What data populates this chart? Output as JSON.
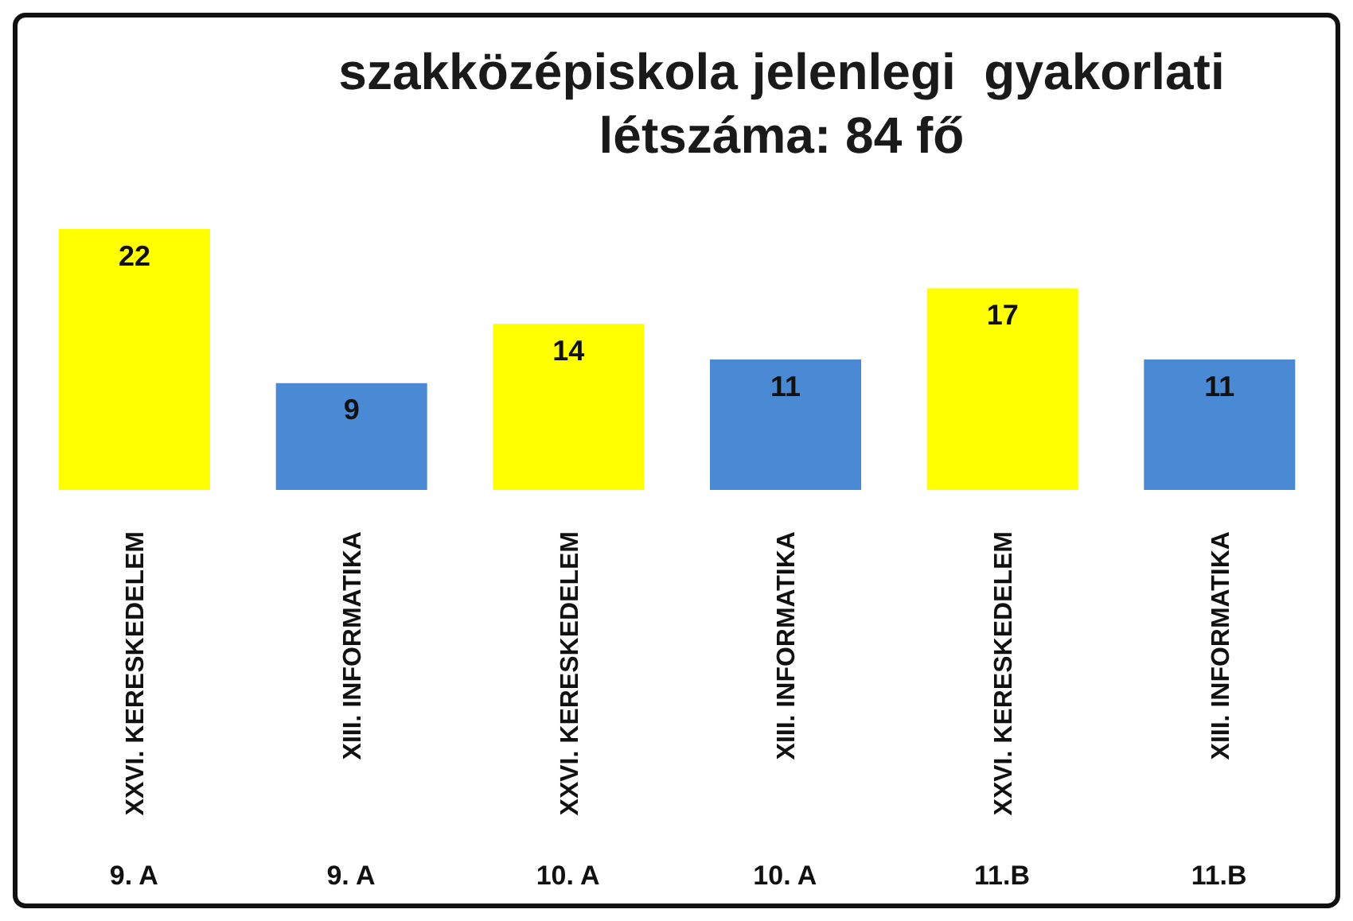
{
  "chart_data": {
    "type": "bar",
    "title": "szakközépiskola jelenlegi  gyakorlati\nlétszáma: 84 fő",
    "categories": [
      "XXVI. KERESKEDELEM",
      "XIII. INFORMATIKA",
      "XXVI. KERESKEDELEM",
      "XIII. INFORMATIKA",
      "XXVI. KERESKEDELEM",
      "XIII. INFORMATIKA"
    ],
    "values": [
      22,
      9,
      14,
      11,
      17,
      11
    ],
    "colors": [
      "#ffff00",
      "#4a8ad4",
      "#ffff00",
      "#4a8ad4",
      "#ffff00",
      "#4a8ad4"
    ],
    "annotations": [
      "9. A",
      "9. A",
      "10. A",
      "10. A",
      "11.B",
      "11.B"
    ],
    "data_labels": true,
    "grid": false,
    "legend": false
  }
}
